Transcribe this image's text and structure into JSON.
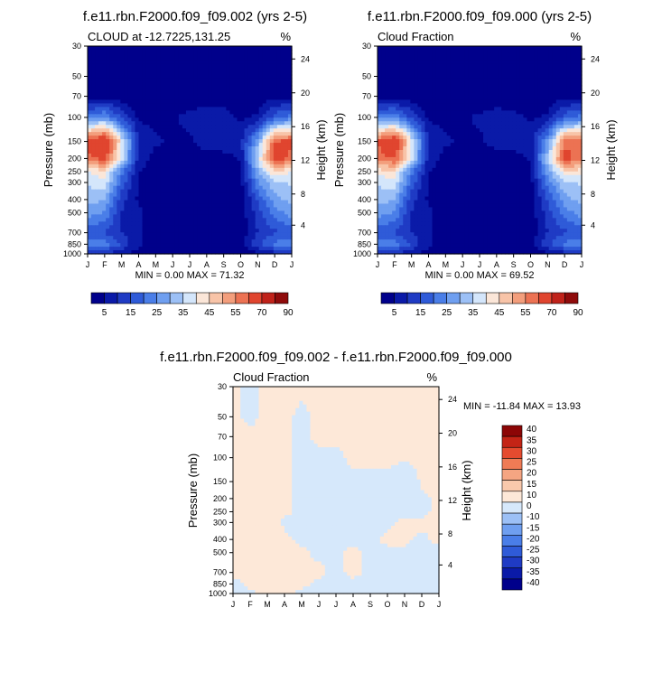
{
  "palette_contour": [
    "#00008b",
    "#0a1aa8",
    "#1f3bc4",
    "#2f5bd8",
    "#4a7ee8",
    "#6f9ff0",
    "#9cc0f6",
    "#d4e6fb",
    "#fbe6d8",
    "#f8c4a8",
    "#f39e7c",
    "#ec7253",
    "#e0452f",
    "#c0221a",
    "#8f0b0b"
  ],
  "palette_diff": [
    "#00008b",
    "#0a1aa8",
    "#1f3bc4",
    "#2f5bd8",
    "#4a7ee8",
    "#6f9ff0",
    "#9cc0f6",
    "#d6e8fb",
    "#fde8d8",
    "#f9c9ac",
    "#f5a582",
    "#ef7b55",
    "#e54b2f",
    "#c42416",
    "#8c0606"
  ],
  "chart_data": [
    {
      "type": "heatmap",
      "title": "f.e11.rbn.F2000.f09_f09.002 (yrs 2-5)",
      "subtitle_left": "CLOUD at -12.7225,131.25",
      "subtitle_right": "%",
      "xlabel": "",
      "ylabel": "Pressure (mb)",
      "ylabel_right": "Height (km)",
      "x_ticks": [
        "J",
        "F",
        "M",
        "A",
        "M",
        "J",
        "J",
        "A",
        "S",
        "O",
        "N",
        "D",
        "J"
      ],
      "y_ticks": [
        "30",
        "50",
        "70",
        "100",
        "150",
        "200",
        "250",
        "300",
        "400",
        "500",
        "700",
        "850",
        "1000"
      ],
      "y_right_ticks": [
        "24",
        "20",
        "16",
        "12",
        "8",
        "4"
      ],
      "min_max_text": "MIN =   0.00 MAX =  71.32",
      "colorbar_ticks": [
        "5",
        "15",
        "25",
        "35",
        "45",
        "55",
        "70",
        "90"
      ],
      "pressure_levels": [
        30,
        50,
        70,
        100,
        150,
        200,
        250,
        300,
        400,
        500,
        700,
        850,
        1000
      ],
      "values": [
        [
          1,
          1,
          1,
          1,
          1,
          1,
          1,
          1,
          1,
          1,
          1,
          1,
          1
        ],
        [
          1,
          1,
          1,
          1,
          1,
          1,
          1,
          1,
          1,
          1,
          1,
          1,
          1
        ],
        [
          3,
          3,
          2,
          1,
          1,
          1,
          1,
          1,
          1,
          1,
          2,
          3,
          3
        ],
        [
          22,
          26,
          14,
          4,
          3,
          4,
          7,
          9,
          8,
          4,
          6,
          18,
          22
        ],
        [
          62,
          71,
          40,
          10,
          6,
          4,
          4,
          9,
          10,
          9,
          28,
          60,
          62
        ],
        [
          58,
          62,
          38,
          8,
          3,
          2,
          1,
          1,
          2,
          6,
          36,
          64,
          58
        ],
        [
          40,
          44,
          22,
          5,
          2,
          1,
          1,
          1,
          1,
          4,
          30,
          44,
          40
        ],
        [
          36,
          38,
          18,
          4,
          2,
          1,
          1,
          1,
          1,
          3,
          24,
          34,
          36
        ],
        [
          32,
          30,
          12,
          4,
          2,
          1,
          1,
          1,
          1,
          2,
          16,
          28,
          32
        ],
        [
          28,
          24,
          10,
          6,
          2,
          1,
          1,
          1,
          1,
          2,
          12,
          22,
          28
        ],
        [
          16,
          14,
          10,
          6,
          2,
          1,
          1,
          1,
          1,
          2,
          10,
          14,
          16
        ],
        [
          22,
          24,
          14,
          6,
          2,
          1,
          1,
          1,
          1,
          3,
          14,
          22,
          22
        ],
        [
          8,
          9,
          6,
          3,
          1,
          1,
          1,
          1,
          1,
          1,
          4,
          8,
          8
        ]
      ]
    },
    {
      "type": "heatmap",
      "title": "f.e11.rbn.F2000.f09_f09.000 (yrs 2-5)",
      "subtitle_left": "Cloud Fraction",
      "subtitle_right": "%",
      "xlabel": "",
      "ylabel": "Pressure (mb)",
      "ylabel_right": "Height (km)",
      "x_ticks": [
        "J",
        "F",
        "M",
        "A",
        "M",
        "J",
        "J",
        "A",
        "S",
        "O",
        "N",
        "D",
        "J"
      ],
      "y_ticks": [
        "30",
        "50",
        "70",
        "100",
        "150",
        "200",
        "250",
        "300",
        "400",
        "500",
        "700",
        "850",
        "1000"
      ],
      "y_right_ticks": [
        "24",
        "20",
        "16",
        "12",
        "8",
        "4"
      ],
      "min_max_text": "MIN =   0.00 MAX =  69.52",
      "colorbar_ticks": [
        "5",
        "15",
        "25",
        "35",
        "45",
        "55",
        "70",
        "90"
      ],
      "pressure_levels": [
        30,
        50,
        70,
        100,
        150,
        200,
        250,
        300,
        400,
        500,
        700,
        850,
        1000
      ],
      "values": [
        [
          1,
          1,
          1,
          1,
          1,
          1,
          1,
          1,
          1,
          1,
          1,
          1,
          1
        ],
        [
          1,
          1,
          1,
          1,
          1,
          1,
          1,
          1,
          1,
          1,
          1,
          1,
          1
        ],
        [
          3,
          3,
          2,
          1,
          1,
          1,
          1,
          1,
          1,
          1,
          2,
          3,
          3
        ],
        [
          22,
          24,
          14,
          4,
          3,
          4,
          6,
          8,
          7,
          4,
          6,
          18,
          22
        ],
        [
          60,
          69,
          40,
          10,
          6,
          4,
          4,
          8,
          9,
          8,
          26,
          58,
          60
        ],
        [
          58,
          60,
          38,
          8,
          3,
          2,
          1,
          1,
          2,
          6,
          34,
          62,
          58
        ],
        [
          42,
          44,
          22,
          5,
          2,
          1,
          1,
          1,
          1,
          4,
          28,
          44,
          42
        ],
        [
          36,
          38,
          18,
          4,
          2,
          1,
          1,
          1,
          1,
          3,
          22,
          34,
          36
        ],
        [
          32,
          30,
          12,
          4,
          2,
          1,
          1,
          1,
          1,
          2,
          16,
          28,
          32
        ],
        [
          28,
          24,
          10,
          6,
          2,
          1,
          1,
          1,
          1,
          2,
          12,
          22,
          28
        ],
        [
          16,
          14,
          10,
          6,
          2,
          1,
          1,
          1,
          1,
          2,
          10,
          14,
          16
        ],
        [
          22,
          24,
          14,
          6,
          2,
          1,
          1,
          1,
          1,
          3,
          14,
          22,
          22
        ],
        [
          8,
          9,
          6,
          3,
          1,
          1,
          1,
          1,
          1,
          1,
          4,
          8,
          8
        ]
      ]
    },
    {
      "type": "heatmap",
      "title": "f.e11.rbn.F2000.f09_f09.002 - f.e11.rbn.F2000.f09_f09.000",
      "subtitle_left": "Cloud Fraction",
      "subtitle_right": "%",
      "xlabel": "",
      "ylabel": "Pressure (mb)",
      "ylabel_right": "Height (km)",
      "x_ticks": [
        "J",
        "F",
        "M",
        "A",
        "M",
        "J",
        "J",
        "A",
        "S",
        "O",
        "N",
        "D",
        "J"
      ],
      "y_ticks": [
        "30",
        "50",
        "70",
        "100",
        "150",
        "200",
        "250",
        "300",
        "400",
        "500",
        "700",
        "850",
        "1000"
      ],
      "y_right_ticks": [
        "24",
        "20",
        "16",
        "12",
        "8",
        "4"
      ],
      "min_max_text": "MIN = -11.84 MAX =  13.93",
      "colorbar_ticks": [
        "40",
        "35",
        "30",
        "25",
        "20",
        "15",
        "10",
        "0",
        "-10",
        "-15",
        "-20",
        "-25",
        "-30",
        "-35",
        "-40"
      ],
      "pressure_levels": [
        30,
        50,
        70,
        100,
        150,
        200,
        250,
        300,
        400,
        500,
        700,
        850,
        1000
      ],
      "values": [
        [
          1,
          -1,
          1,
          1,
          1,
          1,
          1,
          1,
          1,
          1,
          1,
          1,
          1
        ],
        [
          1,
          -1,
          1,
          1,
          -1,
          1,
          1,
          1,
          1,
          1,
          1,
          1,
          1
        ],
        [
          1,
          1,
          1,
          1,
          -1,
          1,
          1,
          1,
          1,
          1,
          1,
          1,
          1
        ],
        [
          1,
          1,
          1,
          1,
          -1,
          -1,
          -1,
          1,
          1,
          1,
          1,
          1,
          1
        ],
        [
          1,
          1,
          1,
          1,
          -1,
          -1,
          -1,
          -1,
          -1,
          -1,
          -5,
          1,
          1
        ],
        [
          1,
          1,
          5,
          1,
          -1,
          -1,
          -1,
          -1,
          -1,
          -1,
          -1,
          -1,
          1
        ],
        [
          1,
          1,
          5,
          1,
          -1,
          -1,
          -1,
          -1,
          -1,
          -1,
          -1,
          -1,
          1
        ],
        [
          1,
          1,
          5,
          -1,
          -1,
          -1,
          -1,
          -1,
          -1,
          -1,
          1,
          1,
          1
        ],
        [
          1,
          1,
          5,
          1,
          -1,
          -1,
          -1,
          -1,
          -1,
          1,
          1,
          -1,
          1
        ],
        [
          1,
          1,
          1,
          1,
          1,
          -1,
          -1,
          1,
          -1,
          -1,
          -1,
          -1,
          -1
        ],
        [
          1,
          1,
          1,
          1,
          1,
          1,
          -1,
          1,
          -1,
          -1,
          -1,
          -1,
          -1
        ],
        [
          -1,
          1,
          1,
          1,
          1,
          -1,
          -1,
          -1,
          -1,
          -1,
          -1,
          -1,
          -1
        ],
        [
          -1,
          -1,
          1,
          1,
          -1,
          -1,
          -1,
          -1,
          -1,
          -1,
          -1,
          -1,
          -1
        ]
      ]
    }
  ]
}
